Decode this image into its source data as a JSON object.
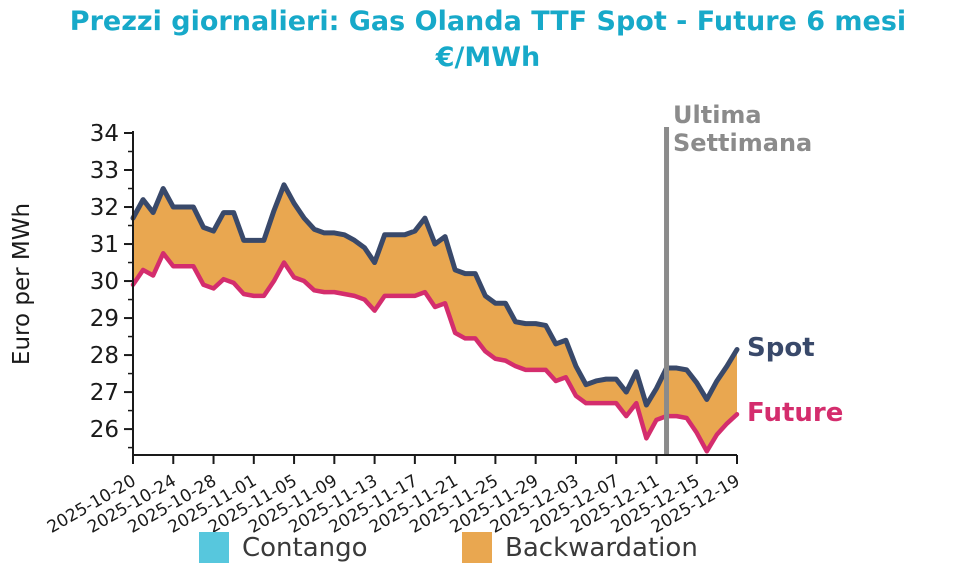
{
  "title": {
    "line1": "Prezzi giornalieri: Gas Olanda TTF Spot - Future 6 mesi",
    "line2": "€/MWh"
  },
  "colors": {
    "title": "#17a9c9",
    "spot_line": "#39496a",
    "future_line": "#d42d6d",
    "backwardation_fill": "#e9a750",
    "contango_fill": "#57c7dd",
    "vline_gray": "#8b8b8b",
    "axis": "#1a1a1a",
    "legend_text": "#3a3a3a"
  },
  "annotations": {
    "last_week_label": "Ultima\nSettimana",
    "spot_label": "Spot",
    "future_label": "Future"
  },
  "legend": [
    {
      "label": "Contango",
      "color": "#57c7dd"
    },
    {
      "label": "Backwardation",
      "color": "#e9a750"
    }
  ],
  "chart_data": {
    "type": "line",
    "title": "Prezzi giornalieri: Gas Olanda TTF Spot - Future 6 mesi €/MWh",
    "xlabel": "",
    "ylabel": "Euro per MWh",
    "ylim": [
      25.3,
      34
    ],
    "yticks": [
      26,
      27,
      28,
      29,
      30,
      31,
      32,
      33,
      34
    ],
    "grid": false,
    "legend_position": "bottom",
    "vline_date": "2025-12-12",
    "fill_between_label": "Backwardation",
    "dates": [
      "2025-10-20",
      "2025-10-21",
      "2025-10-22",
      "2025-10-23",
      "2025-10-24",
      "2025-10-25",
      "2025-10-26",
      "2025-10-27",
      "2025-10-28",
      "2025-10-29",
      "2025-10-30",
      "2025-10-31",
      "2025-11-01",
      "2025-11-02",
      "2025-11-03",
      "2025-11-04",
      "2025-11-05",
      "2025-11-06",
      "2025-11-07",
      "2025-11-08",
      "2025-11-09",
      "2025-11-10",
      "2025-11-11",
      "2025-11-12",
      "2025-11-13",
      "2025-11-14",
      "2025-11-15",
      "2025-11-16",
      "2025-11-17",
      "2025-11-18",
      "2025-11-19",
      "2025-11-20",
      "2025-11-21",
      "2025-11-22",
      "2025-11-23",
      "2025-11-24",
      "2025-11-25",
      "2025-11-26",
      "2025-11-27",
      "2025-11-28",
      "2025-11-29",
      "2025-11-30",
      "2025-12-01",
      "2025-12-02",
      "2025-12-03",
      "2025-12-04",
      "2025-12-05",
      "2025-12-06",
      "2025-12-07",
      "2025-12-08",
      "2025-12-09",
      "2025-12-10",
      "2025-12-11",
      "2025-12-12",
      "2025-12-13",
      "2025-12-14",
      "2025-12-15",
      "2025-12-16",
      "2025-12-17",
      "2025-12-18",
      "2025-12-19"
    ],
    "xtick_labels": [
      "2025-10-20",
      "2025-10-24",
      "2025-10-28",
      "2025-11-01",
      "2025-11-05",
      "2025-11-09",
      "2025-11-13",
      "2025-11-17",
      "2025-11-21",
      "2025-11-25",
      "2025-11-29",
      "2025-12-03",
      "2025-12-07",
      "2025-12-11",
      "2025-12-15",
      "2025-12-19"
    ],
    "series": [
      {
        "name": "Spot",
        "color": "#39496a",
        "values": [
          31.7,
          32.2,
          31.85,
          32.5,
          32.0,
          32.0,
          32.0,
          31.45,
          31.35,
          31.85,
          31.85,
          31.1,
          31.1,
          31.1,
          31.9,
          32.6,
          32.1,
          31.7,
          31.4,
          31.3,
          31.3,
          31.25,
          31.1,
          30.9,
          30.5,
          31.25,
          31.25,
          31.25,
          31.35,
          31.7,
          31.0,
          31.2,
          30.3,
          30.2,
          30.2,
          29.6,
          29.4,
          29.4,
          28.9,
          28.85,
          28.85,
          28.8,
          28.3,
          28.4,
          27.7,
          27.2,
          27.3,
          27.35,
          27.35,
          27.0,
          27.55,
          26.65,
          27.1,
          27.65,
          27.65,
          27.6,
          27.25,
          26.8,
          27.3,
          27.7,
          28.15
        ]
      },
      {
        "name": "Future",
        "color": "#d42d6d",
        "values": [
          29.9,
          30.3,
          30.15,
          30.75,
          30.4,
          30.4,
          30.4,
          29.9,
          29.8,
          30.05,
          29.95,
          29.65,
          29.6,
          29.6,
          30.0,
          30.5,
          30.1,
          30.0,
          29.75,
          29.7,
          29.7,
          29.65,
          29.6,
          29.5,
          29.2,
          29.6,
          29.6,
          29.6,
          29.6,
          29.7,
          29.3,
          29.4,
          28.6,
          28.45,
          28.45,
          28.1,
          27.9,
          27.85,
          27.7,
          27.6,
          27.6,
          27.6,
          27.3,
          27.4,
          26.9,
          26.7,
          26.7,
          26.7,
          26.7,
          26.35,
          26.7,
          25.75,
          26.25,
          26.35,
          26.35,
          26.3,
          25.9,
          25.4,
          25.85,
          26.15,
          26.4
        ]
      }
    ]
  }
}
